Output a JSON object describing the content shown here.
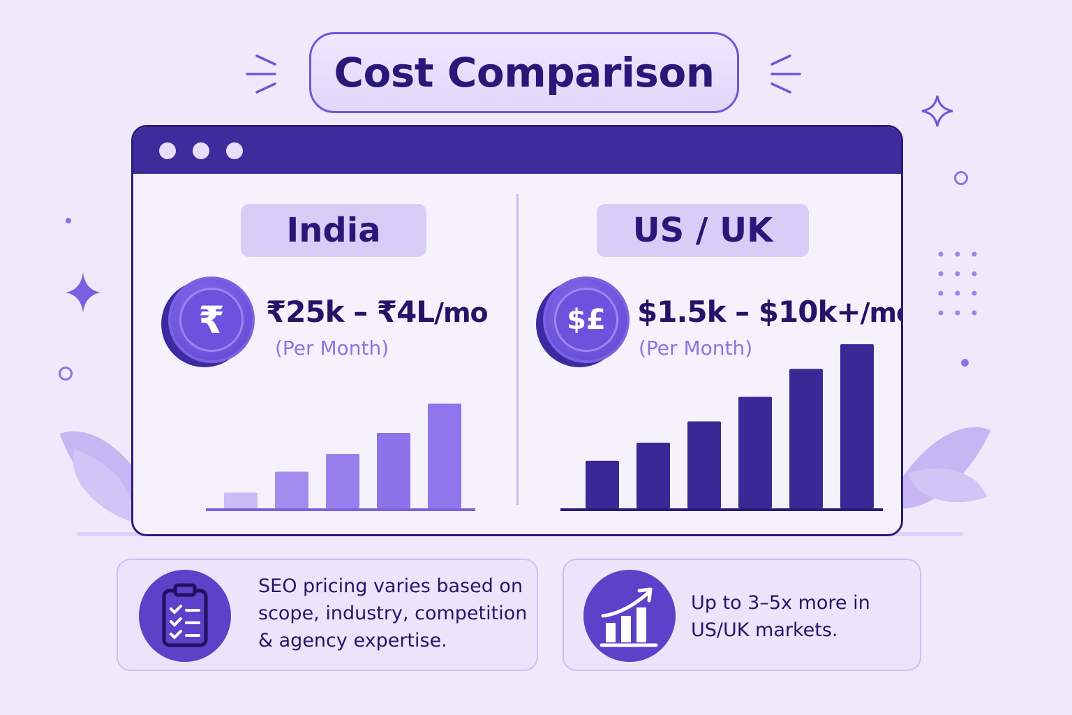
{
  "title": "Cost Comparison",
  "colors": {
    "background": "#efe9fb",
    "window_bar": "#3e2b9c",
    "india_bars": [
      "#cbbcf5",
      "#a48cef",
      "#9a80ee",
      "#8e72ea",
      "#8f74ec"
    ],
    "us_uk_bars": "#3a2897",
    "accent": "#6f55d8"
  },
  "panels": {
    "india": {
      "region": "India",
      "coin_symbol": "₹",
      "price": "₹25k – ₹4L",
      "price_unit": "/mo",
      "period": "(Per Month)"
    },
    "us_uk": {
      "region": "US / UK",
      "coin_symbol": "$£",
      "price": "$1.5k – $10k+",
      "price_unit": "/mo",
      "period": "(Per Month)"
    }
  },
  "chart_data": [
    {
      "type": "bar",
      "title": "India",
      "categories": [
        "",
        "",
        "",
        "",
        ""
      ],
      "values": [
        0.15,
        0.35,
        0.52,
        0.72,
        1.0
      ],
      "value_scale": "relative to tallest bar, unlabeled",
      "grid": false
    },
    {
      "type": "bar",
      "title": "US / UK",
      "categories": [
        "",
        "",
        "",
        "",
        "",
        ""
      ],
      "values": [
        0.29,
        0.4,
        0.53,
        0.68,
        0.85,
        1.0
      ],
      "value_scale": "relative to tallest bar, unlabeled",
      "grid": false
    }
  ],
  "cards": [
    {
      "icon": "clipboard-checklist-icon",
      "lines": [
        "SEO pricing varies based on",
        "scope, industry, competition",
        "& agency expertise."
      ]
    },
    {
      "icon": "growth-chart-arrow-icon",
      "lines": [
        "Up to 3–5x more in",
        "US/UK markets."
      ]
    }
  ]
}
